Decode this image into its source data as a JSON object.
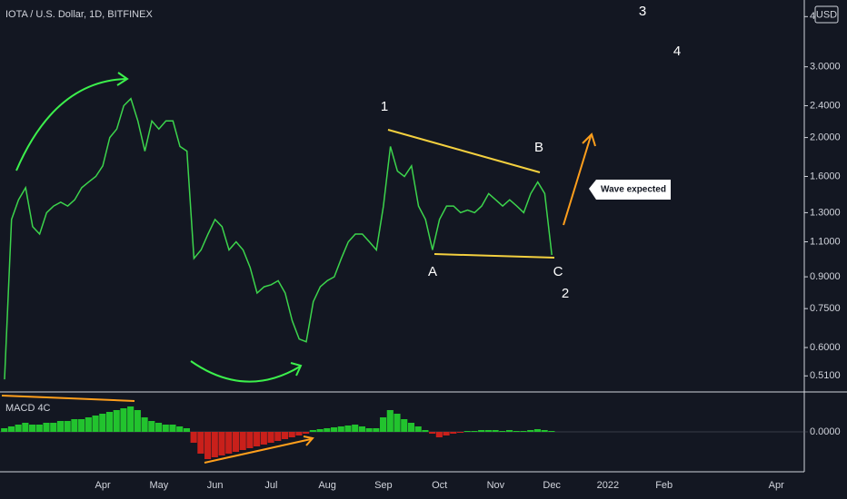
{
  "chart_data": [
    {
      "type": "line",
      "title": "IOTA / U.S. Dollar, 1D, BITFINEX",
      "currency": "USD",
      "log_scale": true,
      "categories": [
        null,
        null,
        null,
        null,
        null,
        null,
        null,
        null,
        null,
        null,
        null,
        null,
        null,
        null,
        "Apr",
        null,
        null,
        null,
        null,
        null,
        null,
        null,
        "May",
        null,
        null,
        null,
        null,
        null,
        null,
        null,
        "Jun",
        null,
        null,
        null,
        null,
        null,
        null,
        null,
        "Jul",
        null,
        null,
        null,
        null,
        null,
        null,
        null,
        "Aug",
        null,
        null,
        null,
        null,
        null,
        null,
        null,
        "Sep",
        null,
        null,
        null,
        null,
        null,
        null,
        null,
        "Oct",
        null,
        null,
        null,
        null,
        null,
        null,
        null,
        "Nov",
        null,
        null,
        null,
        null,
        null,
        null,
        null,
        "Dec",
        null,
        null,
        null,
        null,
        null,
        null,
        null,
        "2022",
        null,
        null,
        null,
        null,
        null,
        null,
        null,
        "Feb",
        null,
        null,
        null,
        null,
        null,
        null,
        null,
        null,
        null,
        null,
        null,
        null,
        null,
        null,
        null,
        "Apr",
        null,
        null,
        null
      ],
      "series": [
        {
          "name": "IOTA",
          "color": "#3cd44c",
          "values": [
            0.5,
            1.25,
            1.4,
            1.5,
            1.2,
            1.15,
            1.3,
            1.35,
            1.38,
            1.35,
            1.4,
            1.5,
            1.55,
            1.6,
            1.7,
            2.0,
            2.1,
            2.4,
            2.5,
            2.2,
            1.85,
            2.2,
            2.1,
            2.2,
            2.2,
            1.9,
            1.85,
            1.0,
            1.05,
            1.15,
            1.25,
            1.2,
            1.05,
            1.1,
            1.05,
            0.95,
            0.82,
            0.85,
            0.86,
            0.88,
            0.82,
            0.7,
            0.63,
            0.62,
            0.78,
            0.85,
            0.88,
            0.9,
            1.0,
            1.1,
            1.15,
            1.15,
            1.1,
            1.05,
            1.35,
            1.9,
            1.65,
            1.6,
            1.7,
            1.35,
            1.25,
            1.05,
            1.25,
            1.35,
            1.35,
            1.3,
            1.32,
            1.3,
            1.35,
            1.45,
            1.4,
            1.35,
            1.4,
            1.35,
            1.3,
            1.45,
            1.55,
            1.45,
            1.02,
            null,
            null,
            null,
            null,
            null,
            null,
            null,
            null,
            null,
            null,
            null,
            null,
            null,
            null,
            null,
            null,
            null,
            null,
            null,
            null,
            null,
            null,
            null,
            null,
            null,
            null,
            null,
            null,
            null,
            null,
            null,
            null,
            null,
            null,
            null
          ]
        }
      ],
      "ylim": [
        0.47,
        4.4
      ],
      "yticks": [
        {
          "value": 0.51,
          "label": "0.5100"
        },
        {
          "value": 0.6,
          "label": "0.6000"
        },
        {
          "value": 0.75,
          "label": "0.7500"
        },
        {
          "value": 0.9,
          "label": "0.9000"
        },
        {
          "value": 1.1,
          "label": "1.1000"
        },
        {
          "value": 1.3,
          "label": "1.3000"
        },
        {
          "value": 1.6,
          "label": "1.6000"
        },
        {
          "value": 2.0,
          "label": "2.0000"
        },
        {
          "value": 2.4,
          "label": "2.4000"
        },
        {
          "value": 3.0,
          "label": "3.0000"
        },
        4
      ],
      "annotations": [
        "3",
        "4",
        "1",
        "B",
        "A",
        "C",
        "2",
        "Wave expected"
      ]
    },
    {
      "type": "bar",
      "title": "MACD 4C",
      "positive_color": "#22c32e",
      "negative_color": "#c9201b",
      "values": [
        0.02,
        0.03,
        0.04,
        0.05,
        0.04,
        0.04,
        0.05,
        0.05,
        0.06,
        0.06,
        0.07,
        0.07,
        0.08,
        0.09,
        0.1,
        0.11,
        0.12,
        0.13,
        0.14,
        0.12,
        0.08,
        0.06,
        0.05,
        0.04,
        0.04,
        0.03,
        0.02,
        -0.06,
        -0.12,
        -0.15,
        -0.14,
        -0.13,
        -0.12,
        -0.11,
        -0.1,
        -0.09,
        -0.08,
        -0.07,
        -0.06,
        -0.05,
        -0.04,
        -0.03,
        -0.02,
        -0.01,
        0.01,
        0.015,
        0.02,
        0.025,
        0.03,
        0.035,
        0.04,
        0.03,
        0.02,
        0.02,
        0.08,
        0.12,
        0.1,
        0.07,
        0.05,
        0.03,
        0.01,
        -0.01,
        -0.03,
        -0.02,
        -0.01,
        -0.005,
        0.005,
        0.005,
        0.01,
        0.01,
        0.01,
        0.005,
        0.01,
        0.005,
        0.005,
        0.01,
        0.015,
        0.01,
        0.005,
        null,
        null,
        null,
        null,
        null,
        null,
        null,
        null,
        null,
        null,
        null,
        null,
        null,
        null,
        null,
        null,
        null,
        null,
        null,
        null,
        null,
        null,
        null,
        null,
        null,
        null,
        null,
        null,
        null,
        null,
        null,
        null,
        null,
        null,
        null
      ],
      "ylim": [
        -0.2,
        0.2
      ],
      "yticks": [
        {
          "value": 0,
          "label": "0.0000"
        }
      ]
    }
  ]
}
